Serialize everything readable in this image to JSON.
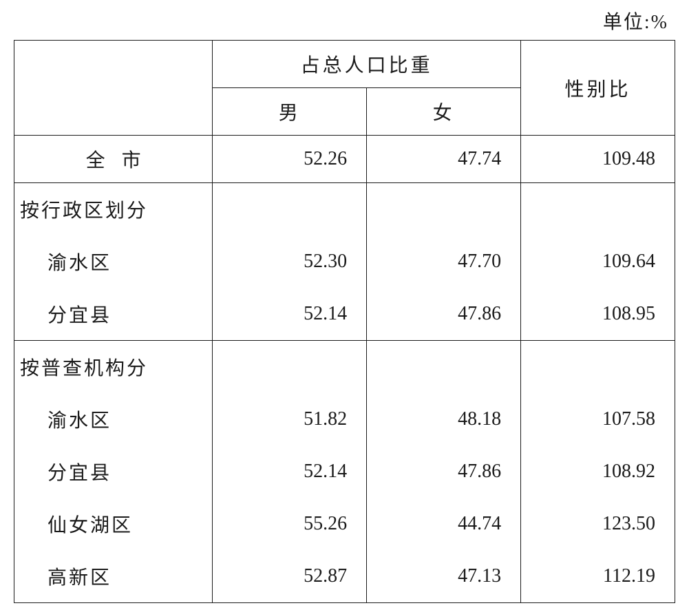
{
  "unit_label": "单位:%",
  "header": {
    "group_label": "占总人口比重",
    "sub_male": "男",
    "sub_female": "女",
    "ratio": "性别比"
  },
  "city_row": {
    "label": "全市",
    "male": "52.26",
    "female": "47.74",
    "ratio": "109.48"
  },
  "section1": {
    "title": "按行政区划分",
    "rows": [
      {
        "label": "渝水区",
        "male": "52.30",
        "female": "47.70",
        "ratio": "109.64"
      },
      {
        "label": "分宜县",
        "male": "52.14",
        "female": "47.86",
        "ratio": "108.95"
      }
    ]
  },
  "section2": {
    "title": "按普查机构分",
    "rows": [
      {
        "label": "渝水区",
        "male": "51.82",
        "female": "48.18",
        "ratio": "107.58"
      },
      {
        "label": "分宜县",
        "male": "52.14",
        "female": "47.86",
        "ratio": "108.92"
      },
      {
        "label": "仙女湖区",
        "male": "55.26",
        "female": "44.74",
        "ratio": "123.50"
      },
      {
        "label": "高新区",
        "male": "52.87",
        "female": "47.13",
        "ratio": "112.19"
      }
    ]
  }
}
